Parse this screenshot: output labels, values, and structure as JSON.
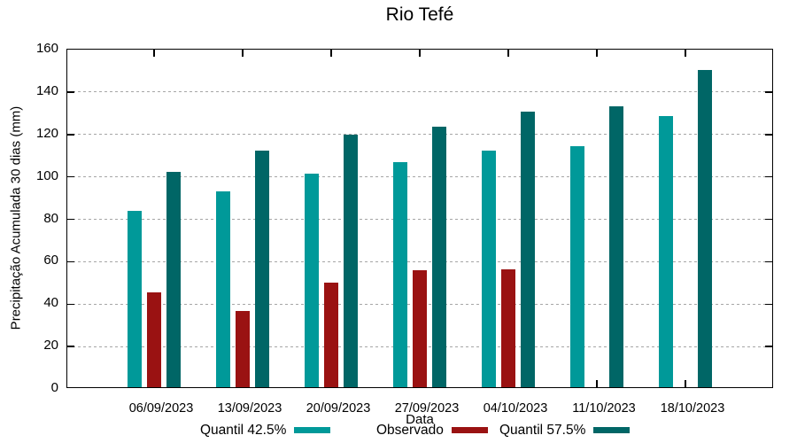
{
  "chart_data": {
    "type": "bar",
    "title": "Rio Tefé",
    "xlabel": "Data",
    "ylabel": "Precipitação Acumulada 30 dias (mm)",
    "categories": [
      "06/09/2023",
      "13/09/2023",
      "20/09/2023",
      "27/09/2023",
      "04/10/2023",
      "11/10/2023",
      "18/10/2023"
    ],
    "series": [
      {
        "name": "Quantil 42.5%",
        "color": "#009999",
        "values": [
          83,
          92.5,
          100.5,
          106,
          111.5,
          113.5,
          128
        ]
      },
      {
        "name": "Observado",
        "color": "#9a1212",
        "values": [
          44.5,
          36,
          49.5,
          55,
          55.5,
          null,
          null
        ]
      },
      {
        "name": "Quantil 57.5%",
        "color": "#006666",
        "values": [
          101.5,
          111.5,
          119,
          123,
          130,
          132.5,
          149.5
        ]
      }
    ],
    "ylim": [
      0,
      160
    ],
    "yticks": [
      0,
      20,
      40,
      60,
      80,
      100,
      120,
      140,
      160
    ],
    "grid": true,
    "grid_color": "#a6a6a6",
    "axis_color": "#000000",
    "legend_position": "bottom"
  }
}
